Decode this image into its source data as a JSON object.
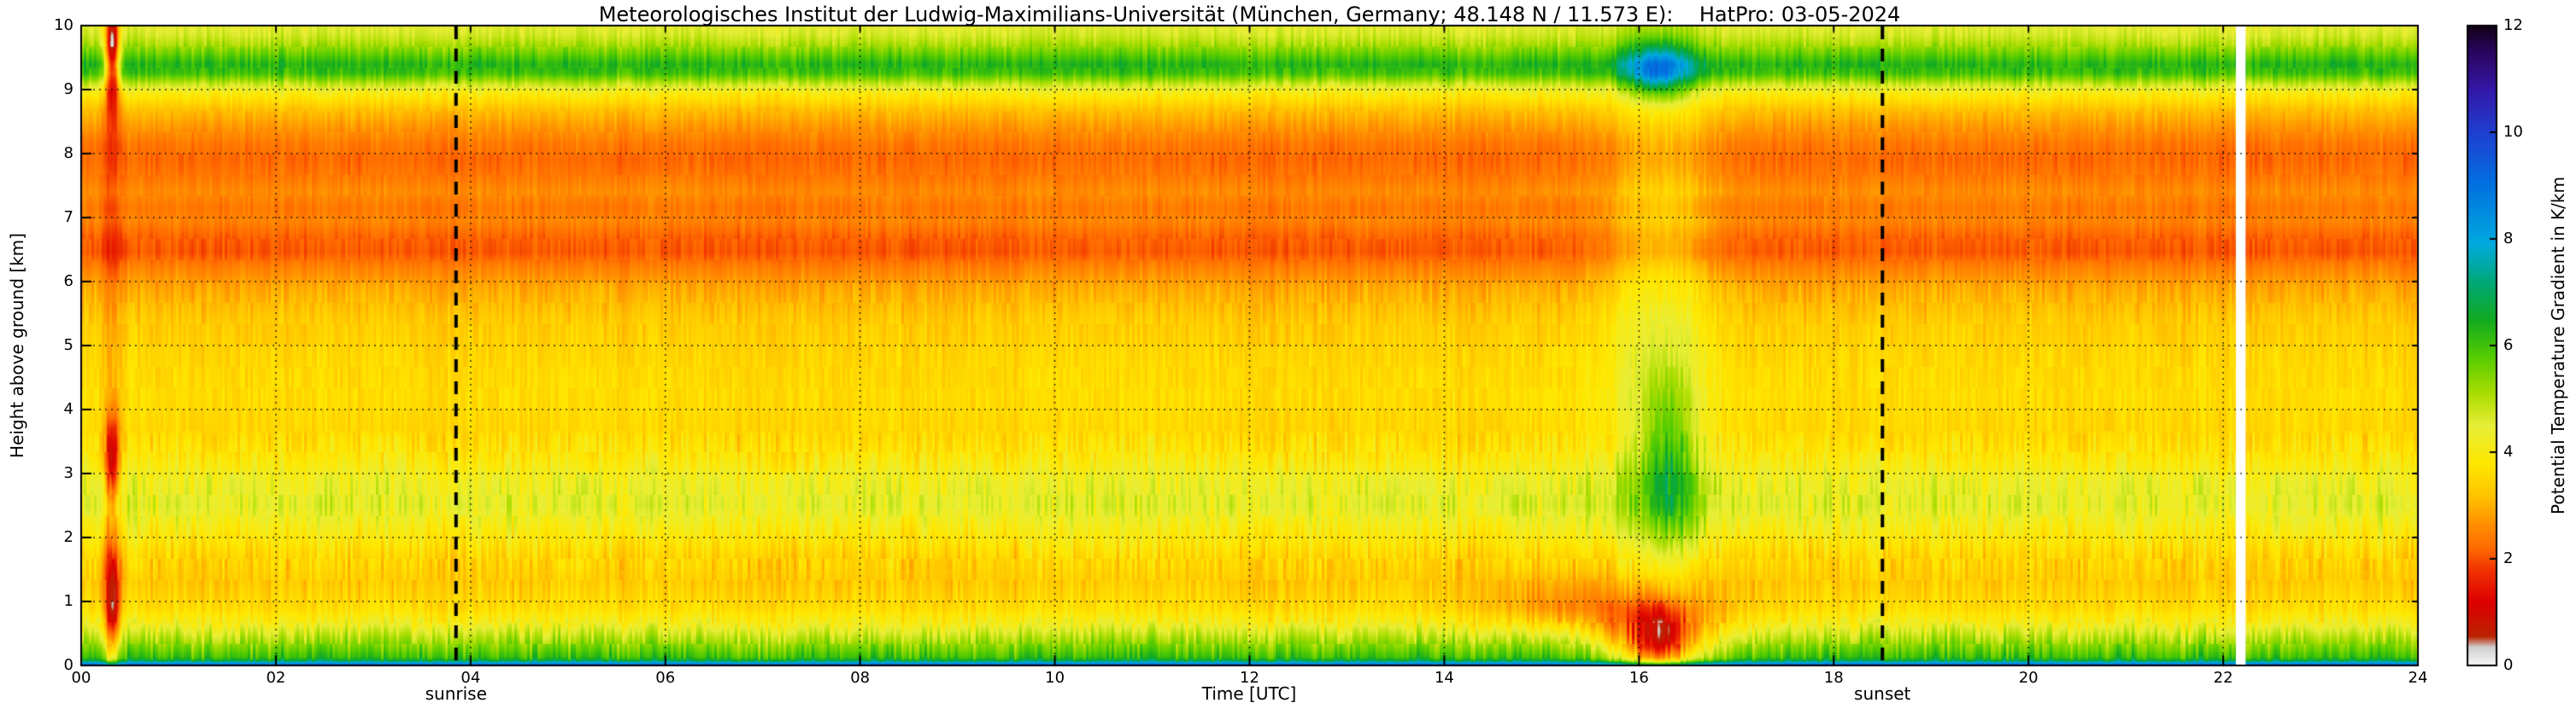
{
  "chart_data": {
    "type": "heatmap",
    "title": "Meteorologisches Institut der Ludwig-Maximilians-Universität (München, Germany; 48.148 N / 11.573 E):    HatPro: 03-05-2024",
    "xlabel": "Time [UTC]",
    "ylabel": "Height above ground [km]",
    "colorbar_label": "Potential Temperature Gradient in K/km",
    "x_range": [
      0,
      24
    ],
    "y_range": [
      0,
      10
    ],
    "grid": "dotted",
    "x_ticks": [
      {
        "value": 0,
        "label": "00"
      },
      {
        "value": 2,
        "label": "02"
      },
      {
        "value": 4,
        "label": "04"
      },
      {
        "value": 6,
        "label": "06"
      },
      {
        "value": 8,
        "label": "08"
      },
      {
        "value": 10,
        "label": "10"
      },
      {
        "value": 12,
        "label": "12"
      },
      {
        "value": 14,
        "label": "14"
      },
      {
        "value": 16,
        "label": "16"
      },
      {
        "value": 18,
        "label": "18"
      },
      {
        "value": 20,
        "label": "20"
      },
      {
        "value": 22,
        "label": "22"
      },
      {
        "value": 24,
        "label": "24"
      }
    ],
    "y_ticks": [
      {
        "value": 0,
        "label": "0"
      },
      {
        "value": 1,
        "label": "1"
      },
      {
        "value": 2,
        "label": "2"
      },
      {
        "value": 3,
        "label": "3"
      },
      {
        "value": 4,
        "label": "4"
      },
      {
        "value": 5,
        "label": "5"
      },
      {
        "value": 6,
        "label": "6"
      },
      {
        "value": 7,
        "label": "7"
      },
      {
        "value": 8,
        "label": "8"
      },
      {
        "value": 9,
        "label": "9"
      },
      {
        "value": 10,
        "label": "10"
      }
    ],
    "colorbar": {
      "range": [
        0,
        12
      ],
      "ticks": [
        {
          "value": 0,
          "label": "0"
        },
        {
          "value": 2,
          "label": "2"
        },
        {
          "value": 4,
          "label": "4"
        },
        {
          "value": 6,
          "label": "6"
        },
        {
          "value": 8,
          "label": "8"
        },
        {
          "value": 10,
          "label": "10"
        },
        {
          "value": 12,
          "label": "12"
        }
      ],
      "color_stops": [
        {
          "v": 0.0,
          "c": "#f8f8f8"
        },
        {
          "v": 0.35,
          "c": "#d0d0d0"
        },
        {
          "v": 0.55,
          "c": "#bb2200"
        },
        {
          "v": 1.2,
          "c": "#dd0000"
        },
        {
          "v": 1.8,
          "c": "#f03300"
        },
        {
          "v": 2.2,
          "c": "#ff6a00"
        },
        {
          "v": 2.7,
          "c": "#ff9400"
        },
        {
          "v": 3.2,
          "c": "#ffc400"
        },
        {
          "v": 3.8,
          "c": "#ffe800"
        },
        {
          "v": 4.5,
          "c": "#e8ee38"
        },
        {
          "v": 5.1,
          "c": "#aadd00"
        },
        {
          "v": 5.8,
          "c": "#55cc00"
        },
        {
          "v": 6.5,
          "c": "#11aa22"
        },
        {
          "v": 7.2,
          "c": "#00a878"
        },
        {
          "v": 7.9,
          "c": "#00aadd"
        },
        {
          "v": 9.0,
          "c": "#0072e0"
        },
        {
          "v": 10.0,
          "c": "#1f3fd0"
        },
        {
          "v": 10.8,
          "c": "#3318a8"
        },
        {
          "v": 11.5,
          "c": "#2a0560"
        },
        {
          "v": 12.0,
          "c": "#120016"
        }
      ]
    },
    "annotations": [
      {
        "type": "vline",
        "style": "dashed",
        "time": 3.85,
        "label": "sunrise"
      },
      {
        "type": "vline",
        "style": "dashed",
        "time": 18.5,
        "label": "sunset"
      }
    ],
    "background_profile": {
      "heights": [
        0.0,
        0.03,
        0.07,
        0.12,
        0.25,
        0.45,
        0.65,
        0.9,
        1.3,
        1.7,
        2.1,
        2.5,
        2.9,
        3.3,
        3.7,
        4.2,
        4.8,
        5.4,
        5.9,
        6.2,
        6.45,
        6.7,
        6.95,
        7.15,
        7.4,
        7.65,
        7.9,
        8.15,
        8.4,
        8.7,
        8.95,
        9.1,
        9.25,
        9.4,
        9.55,
        9.7,
        9.85,
        10.0
      ],
      "gradient_values": [
        9.8,
        8.5,
        6.9,
        6.1,
        5.6,
        4.9,
        4.2,
        3.6,
        3.3,
        3.5,
        4.0,
        4.5,
        4.3,
        3.8,
        3.5,
        3.6,
        3.5,
        3.3,
        2.9,
        2.5,
        2.05,
        2.15,
        2.5,
        2.35,
        2.6,
        2.35,
        2.2,
        2.35,
        2.7,
        3.2,
        4.0,
        4.9,
        6.0,
        6.3,
        5.7,
        5.1,
        4.7,
        4.5
      ]
    },
    "anomalies": [
      {
        "time": 16.2,
        "height": 0.35,
        "t_sigma": 0.3,
        "h_sigma": 0.4,
        "delta": -3.6
      },
      {
        "time": 16.2,
        "height": 0.6,
        "t_sigma": 0.6,
        "h_sigma": 0.55,
        "delta": -1.0
      },
      {
        "time": 16.2,
        "height": 5.0,
        "t_sigma": 0.38,
        "h_sigma": 3.6,
        "delta": 1.15
      },
      {
        "time": 16.2,
        "height": 9.3,
        "t_sigma": 0.22,
        "h_sigma": 0.3,
        "delta": 2.6
      },
      {
        "time": 16.3,
        "height": 3.1,
        "t_sigma": 0.18,
        "h_sigma": 0.9,
        "delta": 1.6
      },
      {
        "time": 15.2,
        "height": 0.9,
        "t_sigma": 0.6,
        "h_sigma": 0.3,
        "delta": -0.8
      },
      {
        "time": 0.32,
        "height": 0.9,
        "t_sigma": 0.055,
        "h_sigma": 0.75,
        "delta": -2.7
      },
      {
        "time": 0.32,
        "height": 3.2,
        "t_sigma": 0.05,
        "h_sigma": 0.45,
        "delta": -2.7
      },
      {
        "time": 0.32,
        "height": 9.55,
        "t_sigma": 0.05,
        "h_sigma": 0.55,
        "delta": -4.6
      },
      {
        "time": 0.32,
        "height": 5.0,
        "t_sigma": 0.07,
        "h_sigma": 5.0,
        "delta": -0.5
      }
    ],
    "missing_data_times": [
      {
        "time": 22.18,
        "width": 0.1
      }
    ]
  }
}
